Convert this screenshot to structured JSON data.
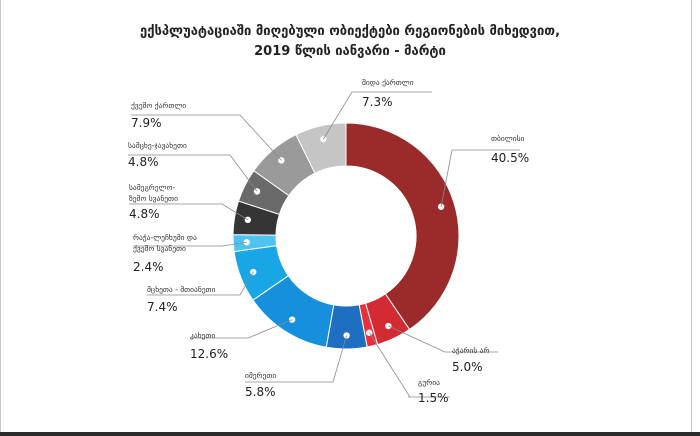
{
  "chart_data": {
    "type": "pie",
    "donut": true,
    "title_line1": "ექსპლუატაციაში მიღებული ობიექტები რეგიონების მიხედვით,",
    "title_line2": "2019 წლის იანვარი - მარტი",
    "slices": [
      {
        "label": "თბილისი",
        "display": "40.5%",
        "value": 40.5,
        "color": "#9b2a2a"
      },
      {
        "label": "აჭარის არ",
        "display": "5.0%",
        "value": 5.0,
        "color": "#d42a34"
      },
      {
        "label": "გურია",
        "display": "1.5%",
        "value": 1.5,
        "color": "#e9303a"
      },
      {
        "label": "იმერეთი",
        "display": "5.8%",
        "value": 5.8,
        "color": "#1e6fc2"
      },
      {
        "label": "კახეთი",
        "display": "12.6%",
        "value": 12.6,
        "color": "#1690dd"
      },
      {
        "label": "მცხეთა - მთიანეთი",
        "display": "7.4%",
        "value": 7.4,
        "color": "#18a6e6"
      },
      {
        "label": "რაჭა-ლეჩხუმი და ქვემო სვანეთი",
        "display": "2.4%",
        "value": 2.4,
        "color": "#4fc3ef"
      },
      {
        "label": "სამეგრელო-ზემო სვანეთი",
        "display": "4.8%",
        "value": 4.8,
        "color": "#353535"
      },
      {
        "label": "სამცხე-ჯავახეთი",
        "display": "4.8%",
        "value": 4.8,
        "color": "#6a6a6a"
      },
      {
        "label": "ქვემო ქართლი",
        "display": "7.9%",
        "value": 7.9,
        "color": "#9a9a9a"
      },
      {
        "label": "შიდა ქართლი",
        "display": "7.3%",
        "value": 7.3,
        "color": "#c5c5c5"
      }
    ]
  }
}
